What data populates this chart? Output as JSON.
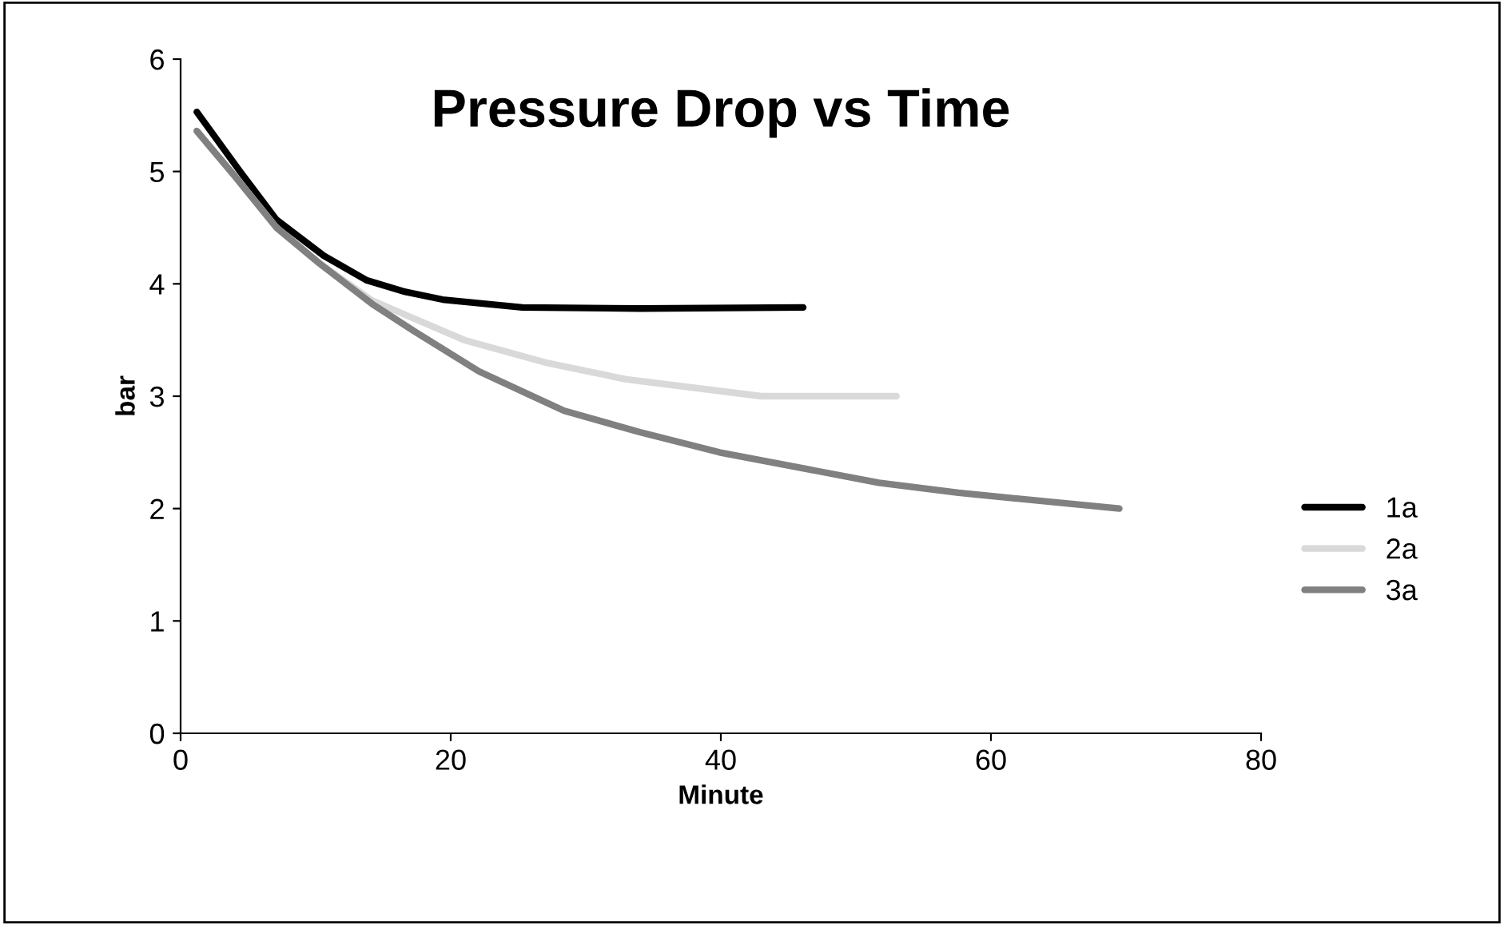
{
  "chart_data": {
    "type": "line",
    "title": "Pressure Drop vs Time",
    "xlabel": "Minute",
    "ylabel": "bar",
    "xlim": [
      0,
      80
    ],
    "xticks": [
      0,
      20,
      40,
      60,
      80
    ],
    "ylim": [
      0,
      6
    ],
    "yticks": [
      0,
      1,
      2,
      3,
      4,
      5,
      6
    ],
    "grid": false,
    "legend": "right",
    "marker": "none",
    "line_style": "solid",
    "series": [
      {
        "name": "1a",
        "color": "#000000",
        "x": [
          1.2,
          4.4,
          7.1,
          10.6,
          13.8,
          16.6,
          19.4,
          25.3,
          34,
          46.1
        ],
        "values": [
          5.53,
          5.0,
          4.57,
          4.25,
          4.03,
          3.93,
          3.86,
          3.79,
          3.78,
          3.79
        ]
      },
      {
        "name": "2a",
        "color": "#d9d9d9",
        "x": [
          1.2,
          4.0,
          7.1,
          10.3,
          14.2,
          21,
          27,
          33,
          43,
          53
        ],
        "values": [
          5.36,
          4.96,
          4.5,
          4.18,
          3.85,
          3.5,
          3.3,
          3.15,
          3.0,
          3.0
        ]
      },
      {
        "name": "3a",
        "color": "#808080",
        "x": [
          1.2,
          4.0,
          7.1,
          10.3,
          14.2,
          17.4,
          22.1,
          28.4,
          34,
          39.9,
          51.7,
          57.6,
          69.5
        ],
        "values": [
          5.36,
          4.96,
          4.5,
          4.18,
          3.82,
          3.57,
          3.22,
          2.87,
          2.68,
          2.5,
          2.23,
          2.14,
          2.0
        ]
      }
    ]
  }
}
